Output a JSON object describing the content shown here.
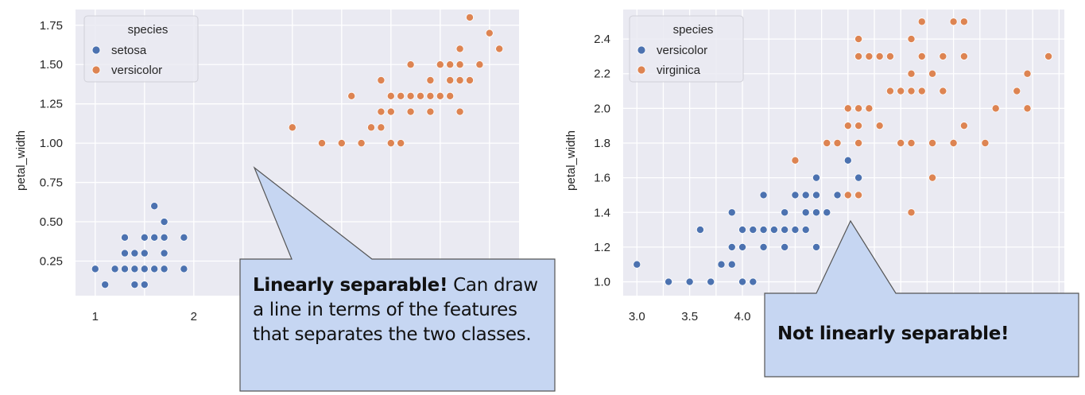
{
  "colors": {
    "plot_bg": "#eaeaf2",
    "grid": "#ffffff",
    "series_blue": "#4c72b0",
    "series_orange": "#dd8452",
    "callout_fill": "#c6d6f2",
    "callout_stroke": "#555555"
  },
  "callouts": {
    "left": {
      "bold": "Linearly separable!",
      "rest": " Can draw a line in terms of the features that separates the two classes."
    },
    "right": {
      "bold": "Not linearly separable!",
      "rest": ""
    }
  },
  "chart_data": [
    {
      "type": "scatter",
      "title": "",
      "xlabel": "",
      "ylabel": "petal_width",
      "xlim": [
        0.8,
        5.3
      ],
      "ylim": [
        0.03,
        1.85
      ],
      "xticks": [
        1,
        2
      ],
      "xtick_labels": [
        "1",
        "2"
      ],
      "yticks": [
        0.25,
        0.5,
        0.75,
        1.0,
        1.25,
        1.5,
        1.75
      ],
      "ytick_labels": [
        "0.25",
        "0.50",
        "0.75",
        "1.00",
        "1.25",
        "1.50",
        "1.75"
      ],
      "grid": true,
      "legend": {
        "title": "species",
        "position": "top-left"
      },
      "series": [
        {
          "name": "setosa",
          "color": "#4c72b0",
          "points": [
            [
              1.0,
              0.2
            ],
            [
              1.1,
              0.1
            ],
            [
              1.2,
              0.2
            ],
            [
              1.3,
              0.2
            ],
            [
              1.3,
              0.3
            ],
            [
              1.3,
              0.4
            ],
            [
              1.4,
              0.1
            ],
            [
              1.4,
              0.2
            ],
            [
              1.4,
              0.3
            ],
            [
              1.5,
              0.1
            ],
            [
              1.5,
              0.2
            ],
            [
              1.5,
              0.3
            ],
            [
              1.5,
              0.4
            ],
            [
              1.6,
              0.2
            ],
            [
              1.6,
              0.4
            ],
            [
              1.6,
              0.6
            ],
            [
              1.7,
              0.2
            ],
            [
              1.7,
              0.3
            ],
            [
              1.7,
              0.4
            ],
            [
              1.7,
              0.5
            ],
            [
              1.9,
              0.2
            ],
            [
              1.9,
              0.4
            ]
          ]
        },
        {
          "name": "versicolor",
          "color": "#dd8452",
          "points": [
            [
              3.0,
              1.1
            ],
            [
              3.3,
              1.0
            ],
            [
              3.5,
              1.0
            ],
            [
              3.6,
              1.3
            ],
            [
              3.7,
              1.0
            ],
            [
              3.8,
              1.1
            ],
            [
              3.9,
              1.1
            ],
            [
              3.9,
              1.2
            ],
            [
              3.9,
              1.4
            ],
            [
              4.0,
              1.0
            ],
            [
              4.0,
              1.2
            ],
            [
              4.0,
              1.3
            ],
            [
              4.1,
              1.0
            ],
            [
              4.1,
              1.3
            ],
            [
              4.2,
              1.2
            ],
            [
              4.2,
              1.3
            ],
            [
              4.2,
              1.5
            ],
            [
              4.3,
              1.3
            ],
            [
              4.4,
              1.2
            ],
            [
              4.4,
              1.3
            ],
            [
              4.4,
              1.4
            ],
            [
              4.5,
              1.3
            ],
            [
              4.5,
              1.5
            ],
            [
              4.6,
              1.3
            ],
            [
              4.6,
              1.4
            ],
            [
              4.6,
              1.5
            ],
            [
              4.7,
              1.2
            ],
            [
              4.7,
              1.4
            ],
            [
              4.7,
              1.5
            ],
            [
              4.7,
              1.6
            ],
            [
              4.8,
              1.4
            ],
            [
              4.8,
              1.8
            ],
            [
              4.9,
              1.5
            ],
            [
              5.0,
              1.7
            ],
            [
              5.1,
              1.6
            ]
          ]
        }
      ]
    },
    {
      "type": "scatter",
      "title": "",
      "xlabel": "",
      "ylabel": "petal_width",
      "xlim": [
        2.87,
        7.05
      ],
      "ylim": [
        0.92,
        2.57
      ],
      "xticks": [
        3.0,
        3.5,
        4.0
      ],
      "xtick_labels": [
        "3.0",
        "3.5",
        "4.0"
      ],
      "yticks": [
        1.0,
        1.2,
        1.4,
        1.6,
        1.8,
        2.0,
        2.2,
        2.4
      ],
      "ytick_labels": [
        "1.0",
        "1.2",
        "1.4",
        "1.6",
        "1.8",
        "2.0",
        "2.2",
        "2.4"
      ],
      "grid": true,
      "legend": {
        "title": "species",
        "position": "top-left"
      },
      "series": [
        {
          "name": "versicolor",
          "color": "#4c72b0",
          "points": [
            [
              3.0,
              1.1
            ],
            [
              3.3,
              1.0
            ],
            [
              3.5,
              1.0
            ],
            [
              3.6,
              1.3
            ],
            [
              3.7,
              1.0
            ],
            [
              3.8,
              1.1
            ],
            [
              3.9,
              1.1
            ],
            [
              3.9,
              1.2
            ],
            [
              3.9,
              1.4
            ],
            [
              4.0,
              1.0
            ],
            [
              4.0,
              1.2
            ],
            [
              4.0,
              1.3
            ],
            [
              4.1,
              1.0
            ],
            [
              4.1,
              1.3
            ],
            [
              4.2,
              1.2
            ],
            [
              4.2,
              1.3
            ],
            [
              4.2,
              1.5
            ],
            [
              4.3,
              1.3
            ],
            [
              4.4,
              1.2
            ],
            [
              4.4,
              1.3
            ],
            [
              4.4,
              1.4
            ],
            [
              4.5,
              1.3
            ],
            [
              4.5,
              1.5
            ],
            [
              4.6,
              1.3
            ],
            [
              4.6,
              1.4
            ],
            [
              4.6,
              1.5
            ],
            [
              4.7,
              1.2
            ],
            [
              4.7,
              1.4
            ],
            [
              4.7,
              1.5
            ],
            [
              4.7,
              1.6
            ],
            [
              4.8,
              1.4
            ],
            [
              4.8,
              1.8
            ],
            [
              4.9,
              1.5
            ],
            [
              5.0,
              1.7
            ],
            [
              5.1,
              1.6
            ]
          ]
        },
        {
          "name": "virginica",
          "color": "#dd8452",
          "points": [
            [
              4.5,
              1.7
            ],
            [
              4.8,
              1.8
            ],
            [
              4.9,
              1.8
            ],
            [
              5.0,
              1.5
            ],
            [
              5.0,
              1.9
            ],
            [
              5.0,
              2.0
            ],
            [
              5.1,
              1.5
            ],
            [
              5.1,
              1.8
            ],
            [
              5.1,
              1.9
            ],
            [
              5.1,
              2.0
            ],
            [
              5.1,
              2.3
            ],
            [
              5.1,
              2.4
            ],
            [
              5.2,
              2.0
            ],
            [
              5.2,
              2.3
            ],
            [
              5.3,
              1.9
            ],
            [
              5.3,
              2.3
            ],
            [
              5.4,
              2.1
            ],
            [
              5.4,
              2.3
            ],
            [
              5.5,
              1.8
            ],
            [
              5.5,
              2.1
            ],
            [
              5.6,
              1.4
            ],
            [
              5.6,
              1.8
            ],
            [
              5.6,
              2.1
            ],
            [
              5.6,
              2.2
            ],
            [
              5.6,
              2.4
            ],
            [
              5.7,
              2.1
            ],
            [
              5.7,
              2.3
            ],
            [
              5.7,
              2.5
            ],
            [
              5.8,
              1.6
            ],
            [
              5.8,
              1.8
            ],
            [
              5.8,
              2.2
            ],
            [
              5.9,
              2.1
            ],
            [
              5.9,
              2.3
            ],
            [
              6.0,
              1.8
            ],
            [
              6.0,
              2.5
            ],
            [
              6.1,
              1.9
            ],
            [
              6.1,
              2.3
            ],
            [
              6.1,
              2.5
            ],
            [
              6.3,
              1.8
            ],
            [
              6.4,
              2.0
            ],
            [
              6.6,
              2.1
            ],
            [
              6.7,
              2.0
            ],
            [
              6.7,
              2.2
            ],
            [
              6.9,
              2.3
            ]
          ]
        }
      ]
    }
  ]
}
